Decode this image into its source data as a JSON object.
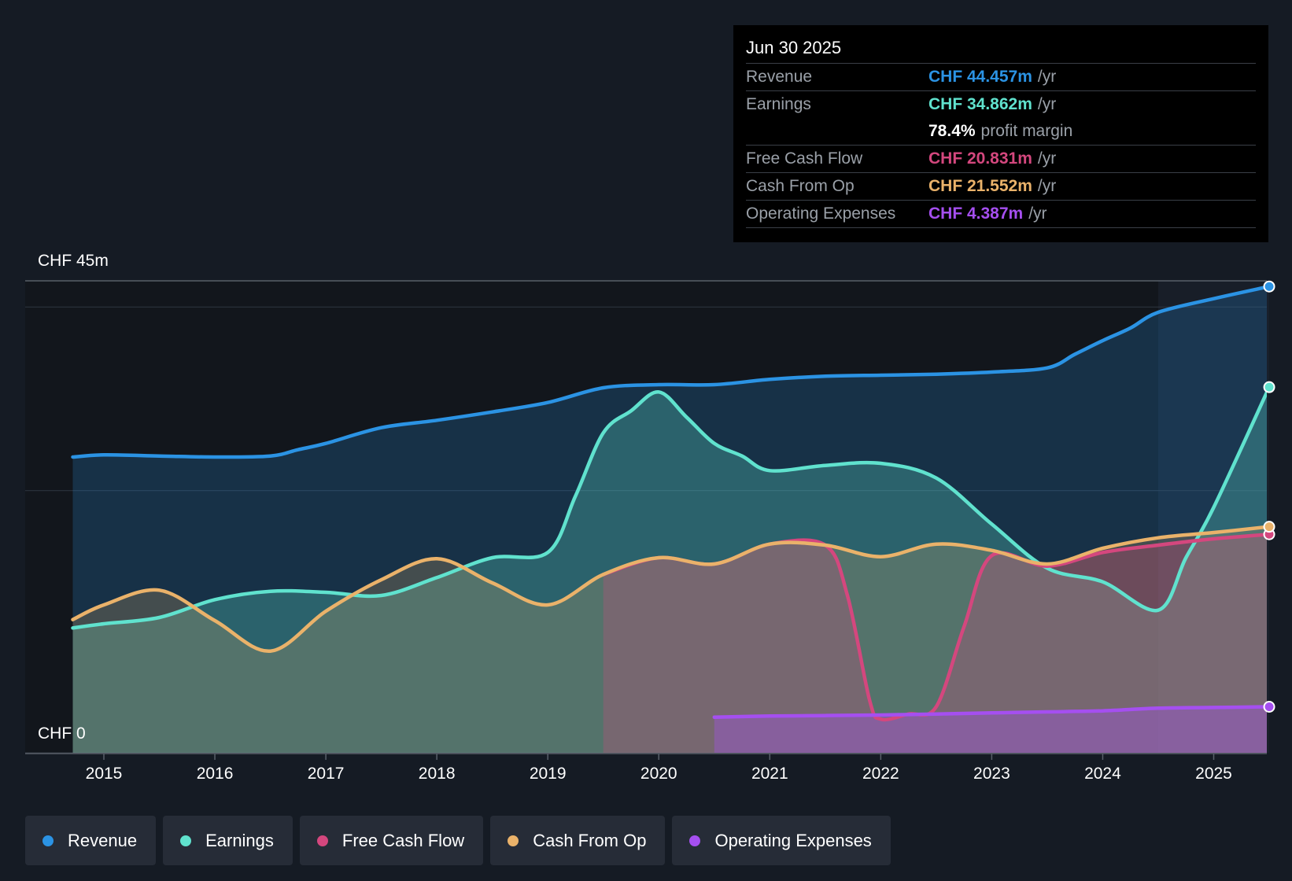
{
  "chart_data": {
    "type": "area",
    "currency": "CHF",
    "y_axis": {
      "top_label": "CHF 45m",
      "bottom_label": "CHF 0",
      "ylim": [
        0,
        45
      ]
    },
    "x_axis": {
      "ticks": [
        "2015",
        "2016",
        "2017",
        "2018",
        "2019",
        "2020",
        "2021",
        "2022",
        "2023",
        "2024",
        "2025"
      ],
      "xlim": [
        2014.25,
        2025.5
      ]
    },
    "highlight_from": 2024.5,
    "series": [
      {
        "name": "Revenue",
        "color": "#2b93e4",
        "points": [
          [
            2014.72,
            28.2
          ],
          [
            2015,
            28.4
          ],
          [
            2015.5,
            28.3
          ],
          [
            2016,
            28.2
          ],
          [
            2016.5,
            28.3
          ],
          [
            2016.75,
            28.9
          ],
          [
            2017,
            29.5
          ],
          [
            2017.5,
            31.0
          ],
          [
            2018,
            31.7
          ],
          [
            2018.5,
            32.5
          ],
          [
            2019,
            33.4
          ],
          [
            2019.5,
            34.8
          ],
          [
            2020,
            35.1
          ],
          [
            2020.5,
            35.1
          ],
          [
            2021,
            35.6
          ],
          [
            2021.5,
            35.9
          ],
          [
            2022,
            36.0
          ],
          [
            2022.5,
            36.1
          ],
          [
            2023,
            36.3
          ],
          [
            2023.5,
            36.7
          ],
          [
            2023.75,
            38.0
          ],
          [
            2024,
            39.3
          ],
          [
            2024.25,
            40.5
          ],
          [
            2024.5,
            42.0
          ],
          [
            2025,
            43.3
          ],
          [
            2025.5,
            44.457
          ]
        ]
      },
      {
        "name": "Earnings",
        "color": "#60e2ce",
        "points": [
          [
            2014.72,
            11.9
          ],
          [
            2015,
            12.3
          ],
          [
            2015.5,
            12.9
          ],
          [
            2016,
            14.6
          ],
          [
            2016.5,
            15.4
          ],
          [
            2017,
            15.3
          ],
          [
            2017.5,
            15.0
          ],
          [
            2018,
            16.7
          ],
          [
            2018.5,
            18.6
          ],
          [
            2019,
            19.1
          ],
          [
            2019.25,
            24.5
          ],
          [
            2019.5,
            30.5
          ],
          [
            2019.75,
            32.6
          ],
          [
            2020,
            34.4
          ],
          [
            2020.25,
            32.0
          ],
          [
            2020.5,
            29.5
          ],
          [
            2020.75,
            28.3
          ],
          [
            2021,
            26.9
          ],
          [
            2021.5,
            27.4
          ],
          [
            2022,
            27.6
          ],
          [
            2022.5,
            26.2
          ],
          [
            2023,
            21.8
          ],
          [
            2023.5,
            17.6
          ],
          [
            2024,
            16.3
          ],
          [
            2024.5,
            13.6
          ],
          [
            2024.75,
            18.6
          ],
          [
            2025,
            23.4
          ],
          [
            2025.5,
            34.862
          ]
        ]
      },
      {
        "name": "Free Cash Flow",
        "color": "#d4477e",
        "points": [
          [
            2019.5,
            17.0
          ],
          [
            2020,
            18.6
          ],
          [
            2020.5,
            18.0
          ],
          [
            2021,
            19.9
          ],
          [
            2021.5,
            19.8
          ],
          [
            2021.7,
            15.0
          ],
          [
            2021.9,
            5.0
          ],
          [
            2022,
            3.2
          ],
          [
            2022.25,
            3.7
          ],
          [
            2022.5,
            4.4
          ],
          [
            2022.75,
            12.0
          ],
          [
            2023,
            18.8
          ],
          [
            2023.5,
            17.8
          ],
          [
            2024,
            19.1
          ],
          [
            2024.5,
            19.8
          ],
          [
            2025,
            20.4
          ],
          [
            2025.5,
            20.831
          ]
        ]
      },
      {
        "name": "Cash From Op",
        "color": "#eab26a",
        "points": [
          [
            2014.72,
            12.7
          ],
          [
            2015,
            14.1
          ],
          [
            2015.5,
            15.5
          ],
          [
            2016,
            12.6
          ],
          [
            2016.5,
            9.7
          ],
          [
            2017,
            13.5
          ],
          [
            2017.5,
            16.5
          ],
          [
            2018,
            18.5
          ],
          [
            2018.5,
            16.2
          ],
          [
            2019,
            14.1
          ],
          [
            2019.5,
            17.0
          ],
          [
            2020,
            18.6
          ],
          [
            2020.5,
            18.0
          ],
          [
            2021,
            19.9
          ],
          [
            2021.5,
            19.8
          ],
          [
            2022,
            18.7
          ],
          [
            2022.5,
            19.9
          ],
          [
            2023,
            19.3
          ],
          [
            2023.5,
            18.0
          ],
          [
            2024,
            19.5
          ],
          [
            2024.5,
            20.5
          ],
          [
            2025,
            21.0
          ],
          [
            2025.5,
            21.552
          ]
        ]
      },
      {
        "name": "Operating Expenses",
        "color": "#a54ff0",
        "points": [
          [
            2020.5,
            3.4
          ],
          [
            2021,
            3.5
          ],
          [
            2021.5,
            3.55
          ],
          [
            2022,
            3.6
          ],
          [
            2022.5,
            3.7
          ],
          [
            2023,
            3.8
          ],
          [
            2023.5,
            3.9
          ],
          [
            2024,
            4.0
          ],
          [
            2024.5,
            4.25
          ],
          [
            2025,
            4.32
          ],
          [
            2025.5,
            4.387
          ]
        ]
      }
    ]
  },
  "tooltip": {
    "date": "Jun 30 2025",
    "rows": [
      {
        "label": "Revenue",
        "value": "CHF 44.457m",
        "unit": "/yr",
        "color": "#2b93e4"
      },
      {
        "label": "Earnings",
        "value": "CHF 34.862m",
        "unit": "/yr",
        "color": "#60e2ce"
      },
      {
        "label": "",
        "value": "78.4%",
        "unit": "profit margin",
        "color": "#ffffff"
      },
      {
        "label": "Free Cash Flow",
        "value": "CHF 20.831m",
        "unit": "/yr",
        "color": "#d4477e"
      },
      {
        "label": "Cash From Op",
        "value": "CHF 21.552m",
        "unit": "/yr",
        "color": "#eab26a"
      },
      {
        "label": "Operating Expenses",
        "value": "CHF 4.387m",
        "unit": "/yr",
        "color": "#a54ff0"
      }
    ]
  },
  "legend": [
    {
      "label": "Revenue",
      "color": "#2b93e4"
    },
    {
      "label": "Earnings",
      "color": "#60e2ce"
    },
    {
      "label": "Free Cash Flow",
      "color": "#d4477e"
    },
    {
      "label": "Cash From Op",
      "color": "#eab26a"
    },
    {
      "label": "Operating Expenses",
      "color": "#a54ff0"
    }
  ]
}
